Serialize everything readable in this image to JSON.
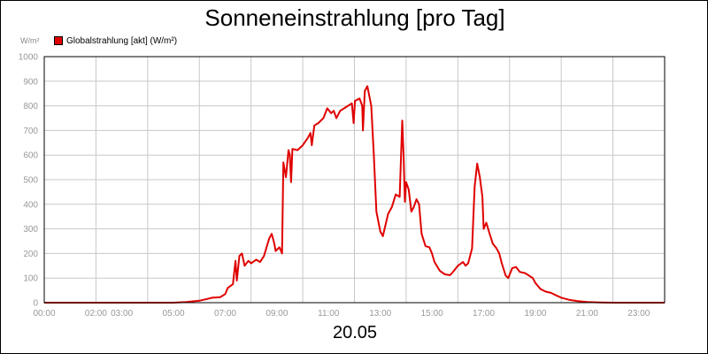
{
  "chart_data": {
    "type": "line",
    "title": "Sonneneinstrahlung [pro Tag]",
    "ylabel": "W/m²",
    "xlabel": "20.05",
    "ylim": [
      0,
      1000
    ],
    "xlim": [
      0,
      24
    ],
    "yticks": [
      0,
      100,
      200,
      300,
      400,
      500,
      600,
      700,
      800,
      900,
      1000
    ],
    "xticks": [
      {
        "h": 0,
        "label": "00:00"
      },
      {
        "h": 2,
        "label": "02:00"
      },
      {
        "h": 3,
        "label": "03:00"
      },
      {
        "h": 5,
        "label": "05:00"
      },
      {
        "h": 7,
        "label": "07:00"
      },
      {
        "h": 9,
        "label": "09:00"
      },
      {
        "h": 11,
        "label": "11:00"
      },
      {
        "h": 13,
        "label": "13:00"
      },
      {
        "h": 15,
        "label": "15:00"
      },
      {
        "h": 17,
        "label": "17:00"
      },
      {
        "h": 19,
        "label": "19:00"
      },
      {
        "h": 21,
        "label": "21:00"
      },
      {
        "h": 23,
        "label": "23:00"
      }
    ],
    "grid": true,
    "legend_position": "top-left",
    "color": "#e00000",
    "series": [
      {
        "name": "Globalstrahlung [akt] (W/m²)",
        "points": [
          [
            0.0,
            0
          ],
          [
            5.0,
            0
          ],
          [
            5.5,
            3
          ],
          [
            6.0,
            8
          ],
          [
            6.3,
            15
          ],
          [
            6.5,
            20
          ],
          [
            6.8,
            22
          ],
          [
            7.0,
            35
          ],
          [
            7.1,
            60
          ],
          [
            7.3,
            75
          ],
          [
            7.4,
            170
          ],
          [
            7.45,
            90
          ],
          [
            7.55,
            190
          ],
          [
            7.65,
            200
          ],
          [
            7.75,
            150
          ],
          [
            7.9,
            170
          ],
          [
            8.0,
            160
          ],
          [
            8.2,
            175
          ],
          [
            8.35,
            165
          ],
          [
            8.5,
            190
          ],
          [
            8.7,
            260
          ],
          [
            8.8,
            280
          ],
          [
            8.9,
            240
          ],
          [
            8.95,
            210
          ],
          [
            9.1,
            225
          ],
          [
            9.2,
            200
          ],
          [
            9.25,
            570
          ],
          [
            9.35,
            510
          ],
          [
            9.45,
            620
          ],
          [
            9.5,
            600
          ],
          [
            9.55,
            490
          ],
          [
            9.6,
            625
          ],
          [
            9.8,
            620
          ],
          [
            10.0,
            640
          ],
          [
            10.2,
            670
          ],
          [
            10.3,
            690
          ],
          [
            10.35,
            640
          ],
          [
            10.45,
            720
          ],
          [
            10.6,
            730
          ],
          [
            10.8,
            750
          ],
          [
            10.95,
            790
          ],
          [
            11.1,
            770
          ],
          [
            11.2,
            780
          ],
          [
            11.3,
            750
          ],
          [
            11.45,
            780
          ],
          [
            11.6,
            790
          ],
          [
            11.75,
            800
          ],
          [
            11.9,
            810
          ],
          [
            11.97,
            730
          ],
          [
            12.02,
            820
          ],
          [
            12.2,
            830
          ],
          [
            12.3,
            800
          ],
          [
            12.33,
            700
          ],
          [
            12.4,
            860
          ],
          [
            12.5,
            880
          ],
          [
            12.65,
            800
          ],
          [
            12.75,
            600
          ],
          [
            12.85,
            370
          ],
          [
            13.0,
            290
          ],
          [
            13.1,
            270
          ],
          [
            13.3,
            360
          ],
          [
            13.45,
            390
          ],
          [
            13.6,
            440
          ],
          [
            13.75,
            430
          ],
          [
            13.85,
            740
          ],
          [
            13.9,
            600
          ],
          [
            13.95,
            410
          ],
          [
            14.0,
            490
          ],
          [
            14.1,
            460
          ],
          [
            14.2,
            370
          ],
          [
            14.3,
            390
          ],
          [
            14.4,
            420
          ],
          [
            14.5,
            400
          ],
          [
            14.6,
            280
          ],
          [
            14.75,
            230
          ],
          [
            14.9,
            225
          ],
          [
            15.0,
            200
          ],
          [
            15.1,
            165
          ],
          [
            15.3,
            130
          ],
          [
            15.5,
            115
          ],
          [
            15.7,
            112
          ],
          [
            15.85,
            130
          ],
          [
            16.0,
            150
          ],
          [
            16.2,
            165
          ],
          [
            16.3,
            150
          ],
          [
            16.4,
            160
          ],
          [
            16.55,
            220
          ],
          [
            16.65,
            470
          ],
          [
            16.75,
            565
          ],
          [
            16.85,
            510
          ],
          [
            16.95,
            430
          ],
          [
            17.0,
            300
          ],
          [
            17.1,
            325
          ],
          [
            17.2,
            290
          ],
          [
            17.35,
            240
          ],
          [
            17.5,
            220
          ],
          [
            17.6,
            200
          ],
          [
            17.7,
            160
          ],
          [
            17.85,
            110
          ],
          [
            17.95,
            100
          ],
          [
            18.1,
            140
          ],
          [
            18.25,
            145
          ],
          [
            18.4,
            125
          ],
          [
            18.6,
            120
          ],
          [
            18.75,
            110
          ],
          [
            18.9,
            100
          ],
          [
            19.0,
            80
          ],
          [
            19.2,
            55
          ],
          [
            19.4,
            45
          ],
          [
            19.6,
            40
          ],
          [
            19.8,
            30
          ],
          [
            20.0,
            20
          ],
          [
            20.3,
            12
          ],
          [
            20.6,
            7
          ],
          [
            21.0,
            3
          ],
          [
            21.5,
            1
          ],
          [
            22.0,
            0
          ],
          [
            24.0,
            0
          ]
        ]
      }
    ]
  }
}
